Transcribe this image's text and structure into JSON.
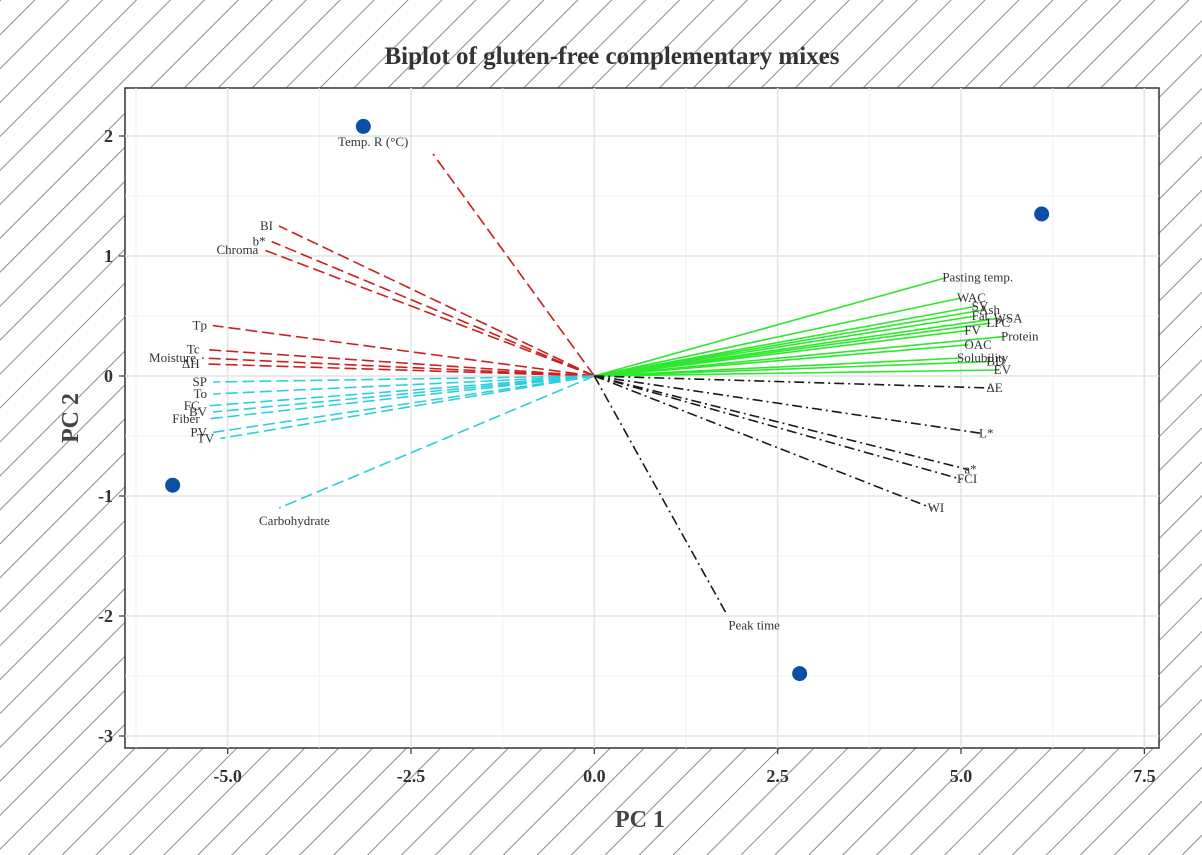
{
  "chart_data": {
    "type": "scatter",
    "subtype": "pca-biplot",
    "title": "Biplot of gluten-free complementary mixes",
    "xlabel": "PC 1",
    "ylabel": "PC 2",
    "xlim": [
      -6.4,
      7.7
    ],
    "ylim": [
      -3.1,
      2.4
    ],
    "x_ticks": [
      -5.0,
      -2.5,
      0.0,
      2.5,
      5.0,
      7.5
    ],
    "x_tick_labels": [
      "-5.0",
      "-2.5",
      "0.0",
      "2.5",
      "5.0",
      "7.5"
    ],
    "y_ticks": [
      -3,
      -2,
      -1,
      0,
      1,
      2
    ],
    "y_tick_labels": [
      "-3",
      "-2",
      "-1",
      "0",
      "1",
      "2"
    ],
    "grid": true,
    "background": "hatched",
    "colors": {
      "points": "#0b4fa8",
      "red_group": "#cc1f1f",
      "cyan_group": "#2ecfdc",
      "green_group": "#2ee82e",
      "black_group": "#1a1a1a"
    },
    "scores": [
      {
        "x": -5.75,
        "y": -0.91
      },
      {
        "x": -3.15,
        "y": 2.08
      },
      {
        "x": 6.1,
        "y": 1.35
      },
      {
        "x": 2.8,
        "y": -2.48
      }
    ],
    "loading_groups": [
      {
        "color": "#cc1f1f",
        "dash": "dashed",
        "vectors": [
          {
            "label": "Temp. R (°C)",
            "x": -2.2,
            "y": 1.85
          },
          {
            "label": "BI",
            "x": -4.3,
            "y": 1.25
          },
          {
            "label": "b*",
            "x": -4.4,
            "y": 1.12
          },
          {
            "label": "Chroma",
            "x": -4.5,
            "y": 1.05
          },
          {
            "label": "Tp",
            "x": -5.2,
            "y": 0.42
          },
          {
            "label": "Tc",
            "x": -5.3,
            "y": 0.22
          },
          {
            "label": "Moisture",
            "x": -5.35,
            "y": 0.15
          },
          {
            "label": "ΔH",
            "x": -5.3,
            "y": 0.1
          }
        ]
      },
      {
        "color": "#2ecfdc",
        "dash": "dashed",
        "vectors": [
          {
            "label": "SP",
            "x": -5.2,
            "y": -0.05
          },
          {
            "label": "To",
            "x": -5.2,
            "y": -0.15
          },
          {
            "label": "FC",
            "x": -5.3,
            "y": -0.25
          },
          {
            "label": "BV",
            "x": -5.2,
            "y": -0.3
          },
          {
            "label": "Fiber",
            "x": -5.3,
            "y": -0.36
          },
          {
            "label": "PV",
            "x": -5.2,
            "y": -0.47
          },
          {
            "label": "TV",
            "x": -5.1,
            "y": -0.52
          },
          {
            "label": "Carbohydrate",
            "x": -4.3,
            "y": -1.1
          }
        ]
      },
      {
        "color": "#2ee82e",
        "dash": "solid",
        "vectors": [
          {
            "label": "Pasting temp.",
            "x": 4.8,
            "y": 0.82
          },
          {
            "label": "WAC",
            "x": 5.0,
            "y": 0.65
          },
          {
            "label": "SV",
            "x": 5.2,
            "y": 0.58
          },
          {
            "label": "Ash",
            "x": 5.3,
            "y": 0.55
          },
          {
            "label": "Fat",
            "x": 5.2,
            "y": 0.5
          },
          {
            "label": "WSA",
            "x": 5.5,
            "y": 0.48
          },
          {
            "label": "LPC",
            "x": 5.4,
            "y": 0.44
          },
          {
            "label": "FV",
            "x": 5.1,
            "y": 0.38
          },
          {
            "label": "Protein",
            "x": 5.6,
            "y": 0.33
          },
          {
            "label": "OAC",
            "x": 5.1,
            "y": 0.26
          },
          {
            "label": "Solubility",
            "x": 5.0,
            "y": 0.15
          },
          {
            "label": "BD",
            "x": 5.4,
            "y": 0.12
          },
          {
            "label": "EV",
            "x": 5.5,
            "y": 0.05
          }
        ]
      },
      {
        "color": "#1a1a1a",
        "dash": "dashdot",
        "vectors": [
          {
            "label": "ΔE",
            "x": 5.4,
            "y": -0.1
          },
          {
            "label": "L*",
            "x": 5.3,
            "y": -0.48
          },
          {
            "label": "a*",
            "x": 5.1,
            "y": -0.78
          },
          {
            "label": "FCI",
            "x": 5.0,
            "y": -0.86
          },
          {
            "label": "WI",
            "x": 4.6,
            "y": -1.1
          },
          {
            "label": "Peak time",
            "x": 1.8,
            "y": -1.98
          }
        ]
      }
    ]
  }
}
